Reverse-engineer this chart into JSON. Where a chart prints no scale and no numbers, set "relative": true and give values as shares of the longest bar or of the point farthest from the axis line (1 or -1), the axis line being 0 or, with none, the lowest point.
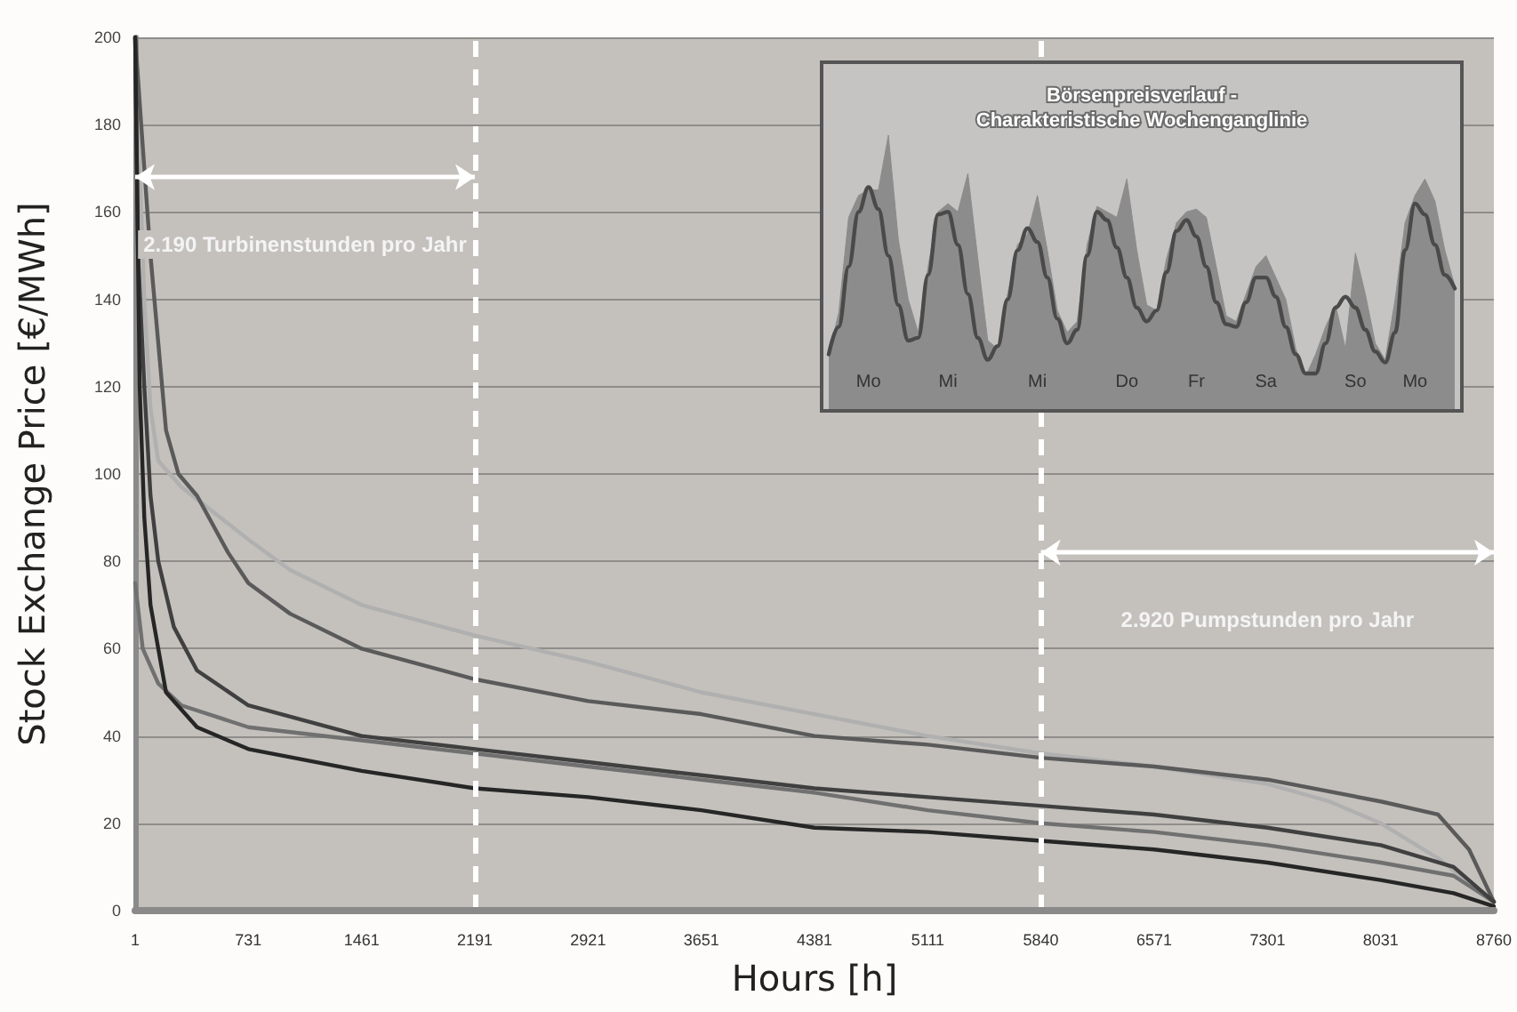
{
  "chart_data": [
    {
      "type": "line",
      "xlabel": "Hours [h]",
      "ylabel": "Stock Exchange Price [€/MWh]",
      "xlim": [
        1,
        8760
      ],
      "xticks": [
        1,
        731,
        1461,
        2191,
        2921,
        3651,
        4381,
        5111,
        5840,
        6571,
        7301,
        8031,
        8760
      ],
      "ylim": [
        0,
        200
      ],
      "yticks": [
        0,
        20,
        40,
        60,
        80,
        100,
        120,
        140,
        160,
        180,
        200
      ],
      "grid": "y",
      "marker": "none",
      "line_style": "solid",
      "series": [
        {
          "color": "#b0b0b0",
          "x": [
            1,
            30,
            60,
            100,
            150,
            300,
            731,
            1000,
            1461,
            2191,
            2921,
            3651,
            4381,
            5111,
            5840,
            6571,
            7301,
            7700,
            8031,
            8400,
            8760
          ],
          "values": [
            200,
            170,
            140,
            115,
            103,
            97,
            85,
            78,
            70,
            63,
            57,
            50,
            45,
            40,
            36,
            33,
            29,
            25,
            20,
            12,
            2
          ]
        },
        {
          "color": "#5a5a5a",
          "x": [
            1,
            40,
            100,
            150,
            200,
            280,
            400,
            600,
            731,
            1000,
            1461,
            2191,
            2921,
            3651,
            4381,
            5111,
            5840,
            6571,
            7301,
            8031,
            8400,
            8600,
            8760
          ],
          "values": [
            200,
            180,
            150,
            130,
            110,
            100,
            95,
            82,
            75,
            68,
            60,
            53,
            48,
            45,
            40,
            38,
            35,
            33,
            30,
            25,
            22,
            14,
            2
          ]
        },
        {
          "color": "#707070",
          "x": [
            1,
            50,
            150,
            300,
            731,
            1461,
            2191,
            2921,
            3651,
            4381,
            5111,
            5840,
            6571,
            7301,
            8031,
            8500,
            8760
          ],
          "values": [
            75,
            60,
            52,
            47,
            42,
            39,
            36,
            33,
            30,
            27,
            23,
            20,
            18,
            15,
            11,
            8,
            2
          ]
        },
        {
          "color": "#404040",
          "x": [
            1,
            20,
            60,
            100,
            150,
            250,
            400,
            731,
            1461,
            2191,
            2921,
            3651,
            4381,
            5111,
            5840,
            6571,
            7301,
            8031,
            8500,
            8760
          ],
          "values": [
            200,
            150,
            120,
            95,
            80,
            65,
            55,
            47,
            40,
            37,
            34,
            31,
            28,
            26,
            24,
            22,
            19,
            15,
            10,
            2
          ]
        },
        {
          "color": "#262626",
          "x": [
            1,
            30,
            60,
            100,
            200,
            400,
            731,
            1461,
            2191,
            2921,
            3651,
            4381,
            5111,
            5840,
            6571,
            7301,
            8031,
            8500,
            8760
          ],
          "values": [
            200,
            120,
            90,
            70,
            50,
            42,
            37,
            32,
            28,
            26,
            23,
            19,
            18,
            16,
            14,
            11,
            7,
            4,
            1
          ]
        }
      ],
      "ref_lines": [
        {
          "axis": "x",
          "value": 2191,
          "color": "#ffffff",
          "line_style": "dashed"
        },
        {
          "axis": "x",
          "value": 5840,
          "color": "#ffffff",
          "line_style": "dashed"
        }
      ],
      "annotations": [
        "2.190 Turbinenstunden pro Jahr",
        "2.920 Pumpstunden pro Jahr"
      ]
    },
    {
      "type": "area",
      "title": "Börsenpreisverlauf -\nCharakteristische Wochenganglinie",
      "relative": true,
      "categories": [
        null,
        null,
        null,
        null,
        "Mo",
        null,
        null,
        null,
        null,
        null,
        null,
        null,
        "Mi",
        null,
        null,
        null,
        null,
        null,
        null,
        null,
        null,
        "Mi",
        null,
        null,
        null,
        null,
        null,
        null,
        null,
        null,
        "Do",
        null,
        null,
        null,
        null,
        null,
        null,
        "Fr",
        null,
        null,
        null,
        null,
        null,
        null,
        "Sa",
        null,
        null,
        null,
        null,
        null,
        null,
        null,
        null,
        "So",
        null,
        null,
        null,
        null,
        null,
        "Mo",
        null,
        null,
        null,
        null
      ],
      "tick_labels": "x",
      "marker": "none",
      "series": [
        {
          "color": "#8c8c8c",
          "values": [
            0.2,
            0.35,
            0.7,
            0.78,
            0.8,
            0.8,
            1.0,
            0.62,
            0.4,
            0.28,
            0.52,
            0.72,
            0.75,
            0.72,
            0.86,
            0.55,
            0.25,
            0.22,
            0.42,
            0.6,
            0.64,
            0.78,
            0.58,
            0.36,
            0.28,
            0.32,
            0.6,
            0.74,
            0.72,
            0.7,
            0.84,
            0.58,
            0.38,
            0.36,
            0.55,
            0.68,
            0.72,
            0.73,
            0.7,
            0.52,
            0.34,
            0.32,
            0.42,
            0.52,
            0.56,
            0.48,
            0.4,
            0.22,
            0.12,
            0.2,
            0.3,
            0.38,
            0.22,
            0.57,
            0.42,
            0.24,
            0.18,
            0.4,
            0.68,
            0.78,
            0.84,
            0.76,
            0.58,
            0.45
          ]
        },
        {
          "type": "line",
          "color": "#4a4a4a",
          "values": [
            0.2,
            0.3,
            0.52,
            0.72,
            0.81,
            0.73,
            0.56,
            0.38,
            0.25,
            0.26,
            0.49,
            0.71,
            0.72,
            0.6,
            0.42,
            0.26,
            0.18,
            0.23,
            0.4,
            0.58,
            0.66,
            0.61,
            0.48,
            0.33,
            0.24,
            0.29,
            0.56,
            0.72,
            0.69,
            0.59,
            0.48,
            0.37,
            0.32,
            0.36,
            0.5,
            0.65,
            0.69,
            0.63,
            0.52,
            0.39,
            0.31,
            0.3,
            0.39,
            0.48,
            0.48,
            0.41,
            0.3,
            0.2,
            0.13,
            0.13,
            0.24,
            0.37,
            0.41,
            0.37,
            0.29,
            0.21,
            0.17,
            0.28,
            0.58,
            0.75,
            0.71,
            0.6,
            0.49,
            0.44
          ]
        }
      ]
    }
  ]
}
